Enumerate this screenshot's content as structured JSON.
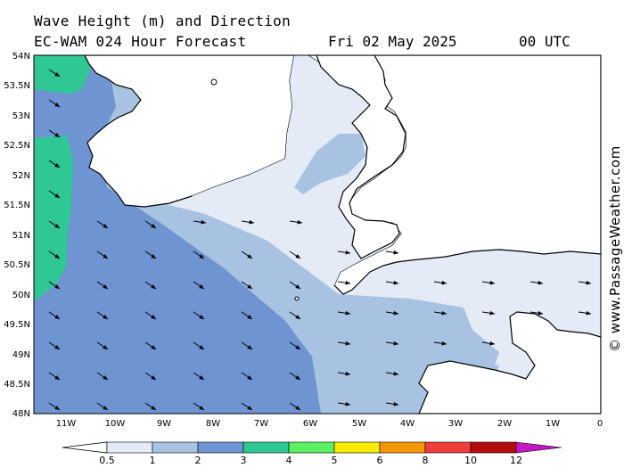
{
  "header": {
    "title": "Wave Height (m) and Direction",
    "subtitle": "EC-WAM 024 Hour Forecast",
    "date": "Fri 02 May 2025",
    "time": "00 UTC"
  },
  "credit": "© www.PassageWeather.com",
  "axes": {
    "lat_labels": [
      "54N",
      "53.5N",
      "53N",
      "52.5N",
      "52N",
      "51.5N",
      "51N",
      "50.5N",
      "50N",
      "49.5N",
      "49N",
      "48.5N",
      "48N"
    ],
    "lon_labels": [
      "11W",
      "10W",
      "9W",
      "8W",
      "7W",
      "6W",
      "5W",
      "4W",
      "3W",
      "2W",
      "1W",
      "0"
    ]
  },
  "legend": {
    "ticks": [
      "0.5",
      "1",
      "2",
      "3",
      "4",
      "5",
      "6",
      "8",
      "10",
      "12"
    ],
    "colors": [
      "#e4ebf6",
      "#a8c2e2",
      "#6e95d1",
      "#2fc793",
      "#5cef62",
      "#f7ec00",
      "#f59500",
      "#ee3d3a",
      "#b50d0d",
      "#c418c4"
    ]
  },
  "map_colors": {
    "sea_light": "#e4ebf6",
    "sea_mid": "#a8c2e2",
    "sea_deep": "#6e95d1",
    "sea_high": "#2fc793",
    "land": "#ffffff",
    "coastline": "#000000"
  }
}
